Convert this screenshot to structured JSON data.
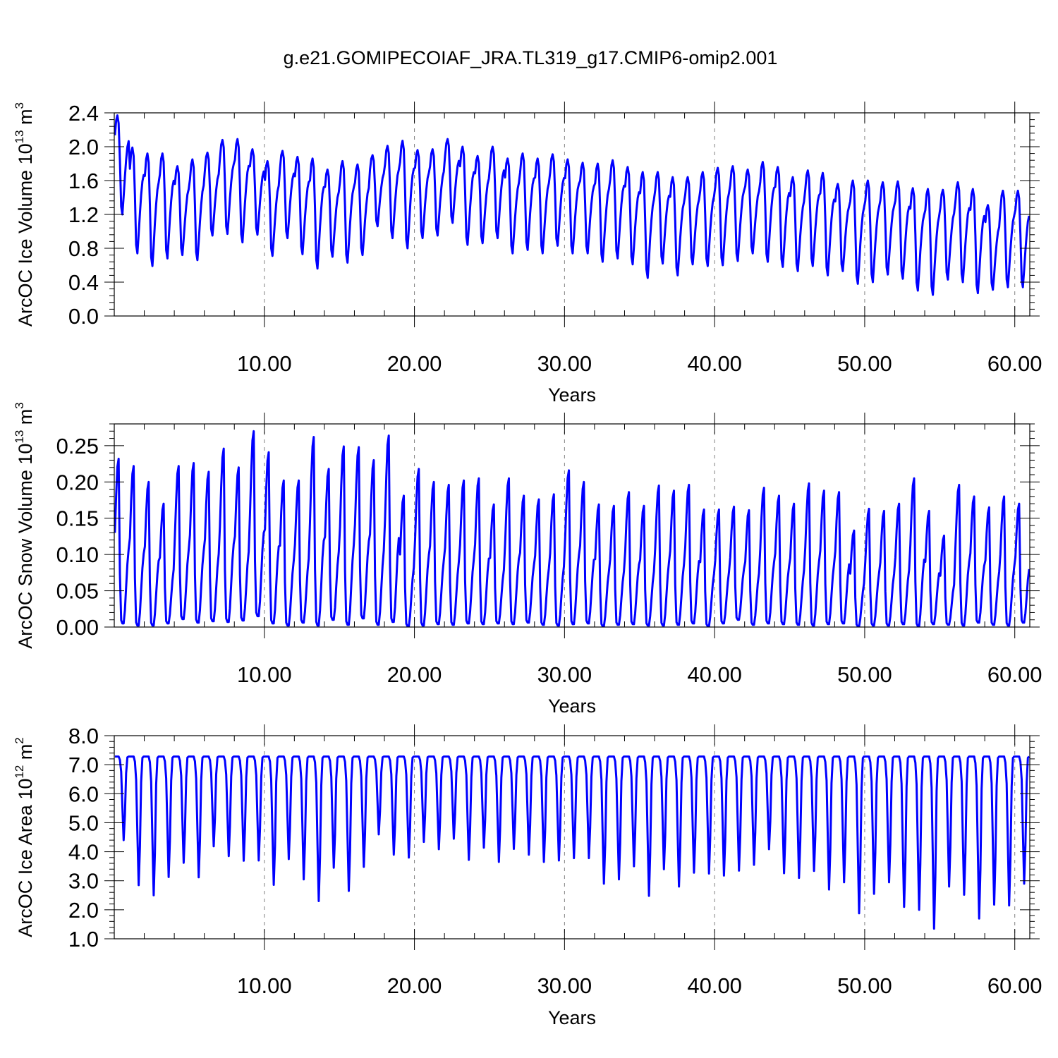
{
  "title": "g.e21.GOMIPECOIAF_JRA.TL319_g17.CMIP6-omip2.001",
  "colors": {
    "series": "#0000ff",
    "axis": "#000000",
    "grid": "#808080",
    "background": "#ffffff"
  },
  "chart_data": [
    {
      "type": "line",
      "ylabel": {
        "main": "ArcOC Ice Volume 10",
        "exp": "13",
        "unit": " m",
        "unit_exp": "3"
      },
      "xlabel": "Years",
      "x_tick_labels": [
        "10.00",
        "20.00",
        "30.00",
        "40.00",
        "50.00",
        "60.00"
      ],
      "x_ticks": [
        10,
        20,
        30,
        40,
        50,
        60
      ],
      "y_tick_labels": [
        "0.0",
        "0.4",
        "0.8",
        "1.2",
        "1.6",
        "2.0",
        "2.4"
      ],
      "y_ticks": [
        0.0,
        0.4,
        0.8,
        1.2,
        1.6,
        2.0,
        2.4
      ],
      "xlim": [
        0,
        61
      ],
      "ylim": [
        0.0,
        2.4
      ],
      "grid": "x-dashed",
      "series": [
        {
          "monthly_pattern": "Jan,Feb,Mar,Apr,May,Jun,Jul,Aug,Sep,Oct,Nov,Dec",
          "annual_max": [
            2.37,
            1.99,
            1.92,
            1.92,
            1.77,
            1.85,
            1.93,
            2.08,
            2.09,
            1.97,
            1.83,
            1.95,
            1.88,
            1.86,
            1.73,
            1.83,
            1.79,
            1.9,
            2.01,
            2.07,
            1.96,
            1.97,
            2.09,
            2.0,
            1.89,
            2.0,
            1.86,
            1.92,
            1.86,
            1.91,
            1.85,
            1.81,
            1.8,
            1.84,
            1.76,
            1.7,
            1.7,
            1.64,
            1.64,
            1.7,
            1.75,
            1.77,
            1.73,
            1.82,
            1.76,
            1.64,
            1.72,
            1.69,
            1.56,
            1.6,
            1.6,
            1.58,
            1.59,
            1.51,
            1.5,
            1.49,
            1.58,
            1.5,
            1.31,
            1.48
          ],
          "annual_min": [
            1.2,
            0.74,
            0.59,
            0.68,
            0.72,
            0.66,
            0.95,
            0.97,
            0.87,
            0.96,
            0.71,
            0.92,
            0.73,
            0.56,
            0.7,
            0.63,
            0.72,
            1.06,
            0.92,
            0.8,
            0.92,
            0.95,
            1.1,
            0.84,
            0.86,
            0.92,
            0.74,
            0.78,
            0.74,
            0.83,
            0.74,
            0.74,
            0.64,
            0.68,
            0.61,
            0.45,
            0.62,
            0.48,
            0.61,
            0.59,
            0.6,
            0.65,
            0.74,
            0.64,
            0.58,
            0.53,
            0.59,
            0.48,
            0.53,
            0.38,
            0.4,
            0.49,
            0.44,
            0.3,
            0.25,
            0.43,
            0.4,
            0.27,
            0.31,
            0.34
          ]
        }
      ]
    },
    {
      "type": "line",
      "ylabel": {
        "main": "ArcOC Snow Volume 10",
        "exp": "13",
        "unit": " m",
        "unit_exp": "3"
      },
      "xlabel": "Years",
      "x_tick_labels": [
        "10.00",
        "20.00",
        "30.00",
        "40.00",
        "50.00",
        "60.00"
      ],
      "x_ticks": [
        10,
        20,
        30,
        40,
        50,
        60
      ],
      "y_tick_labels": [
        "0.00",
        "0.05",
        "0.10",
        "0.15",
        "0.20",
        "0.25"
      ],
      "y_ticks": [
        0.0,
        0.05,
        0.1,
        0.15,
        0.2,
        0.25
      ],
      "xlim": [
        0,
        61
      ],
      "ylim": [
        0.0,
        0.28
      ],
      "grid": "x-dashed",
      "series": [
        {
          "monthly_pattern": "Jan,Feb,Mar,Apr,May,Jun,Jul,Aug,Sep,Oct,Nov,Dec",
          "annual_max": [
            0.232,
            0.222,
            0.2,
            0.17,
            0.222,
            0.226,
            0.214,
            0.246,
            0.22,
            0.27,
            0.241,
            0.202,
            0.202,
            0.262,
            0.218,
            0.249,
            0.248,
            0.23,
            0.264,
            0.181,
            0.218,
            0.2,
            0.196,
            0.202,
            0.205,
            0.169,
            0.205,
            0.181,
            0.176,
            0.183,
            0.216,
            0.2,
            0.169,
            0.167,
            0.186,
            0.167,
            0.195,
            0.188,
            0.196,
            0.162,
            0.162,
            0.166,
            0.161,
            0.192,
            0.181,
            0.17,
            0.198,
            0.188,
            0.186,
            0.133,
            0.163,
            0.16,
            0.17,
            0.205,
            0.16,
            0.126,
            0.196,
            0.18,
            0.165,
            0.18,
            0.17
          ],
          "annual_min": [
            0.005,
            0.002,
            0.002,
            0.005,
            0.011,
            0.006,
            0.008,
            0.007,
            0.009,
            0.015,
            0.005,
            0.002,
            0.006,
            0.002,
            0.01,
            0.003,
            0.012,
            0.003,
            0.007,
            0.001,
            0.002,
            0.004,
            0.003,
            0.005,
            0.004,
            0.005,
            0.004,
            0.006,
            0.003,
            0.002,
            0.004,
            0.005,
            0.001,
            0.003,
            0.004,
            0.002,
            0.002,
            0.003,
            0.005,
            0.001,
            0.005,
            0.01,
            0.003,
            0.005,
            0.004,
            0.003,
            0.002,
            0.004,
            0.005,
            0.001,
            0.002,
            0.002,
            0.004,
            0.001,
            0.004,
            0.003,
            0.002,
            0.006,
            0.003,
            0.002,
            0.006
          ]
        }
      ]
    },
    {
      "type": "line",
      "ylabel": {
        "main": "ArcOC Ice Area 10",
        "exp": "12",
        "unit": " m",
        "unit_exp": "2"
      },
      "xlabel": "Years",
      "x_tick_labels": [
        "10.00",
        "20.00",
        "30.00",
        "40.00",
        "50.00",
        "60.00"
      ],
      "x_ticks": [
        10,
        20,
        30,
        40,
        50,
        60
      ],
      "y_tick_labels": [
        "1.0",
        "2.0",
        "3.0",
        "4.0",
        "5.0",
        "6.0",
        "7.0",
        "8.0"
      ],
      "y_ticks": [
        1.0,
        2.0,
        3.0,
        4.0,
        5.0,
        6.0,
        7.0,
        8.0
      ],
      "xlim": [
        0,
        61
      ],
      "ylim": [
        1.0,
        8.0
      ],
      "grid": "x-dashed",
      "series": [
        {
          "monthly_pattern": "Jan,Feb,Mar,Apr,May,Jun,Jul,Aug,Sep,Oct,Nov,Dec",
          "annual_max": [
            7.28,
            7.28,
            7.28,
            7.28,
            7.28,
            7.28,
            7.28,
            7.28,
            7.28,
            7.28,
            7.28,
            7.28,
            7.28,
            7.28,
            7.28,
            7.28,
            7.28,
            7.28,
            7.28,
            7.28,
            7.28,
            7.28,
            7.28,
            7.28,
            7.28,
            7.28,
            7.28,
            7.28,
            7.28,
            7.28,
            7.28,
            7.28,
            7.28,
            7.28,
            7.28,
            7.28,
            7.28,
            7.28,
            7.28,
            7.28,
            7.28,
            7.28,
            7.28,
            7.28,
            7.28,
            7.28,
            7.28,
            7.28,
            7.28,
            7.28,
            7.28,
            7.28,
            7.28,
            7.28,
            7.28,
            7.28,
            7.28,
            7.28,
            7.28,
            7.28,
            7.28
          ],
          "annual_min": [
            4.4,
            2.85,
            2.5,
            3.13,
            3.62,
            3.12,
            4.19,
            3.85,
            3.69,
            3.7,
            2.86,
            3.75,
            3.05,
            2.3,
            3.45,
            2.65,
            3.48,
            4.6,
            3.9,
            3.8,
            4.34,
            4.09,
            4.45,
            3.72,
            4.14,
            3.65,
            4.1,
            3.9,
            3.65,
            3.7,
            3.78,
            3.78,
            2.9,
            3.05,
            3.5,
            2.48,
            3.4,
            2.8,
            3.28,
            3.25,
            3.18,
            3.35,
            3.55,
            4.09,
            3.26,
            3.1,
            3.34,
            2.7,
            2.95,
            1.88,
            2.55,
            2.95,
            2.1,
            2.0,
            1.35,
            2.8,
            2.52,
            1.7,
            2.18,
            2.15,
            2.9
          ]
        }
      ]
    }
  ]
}
